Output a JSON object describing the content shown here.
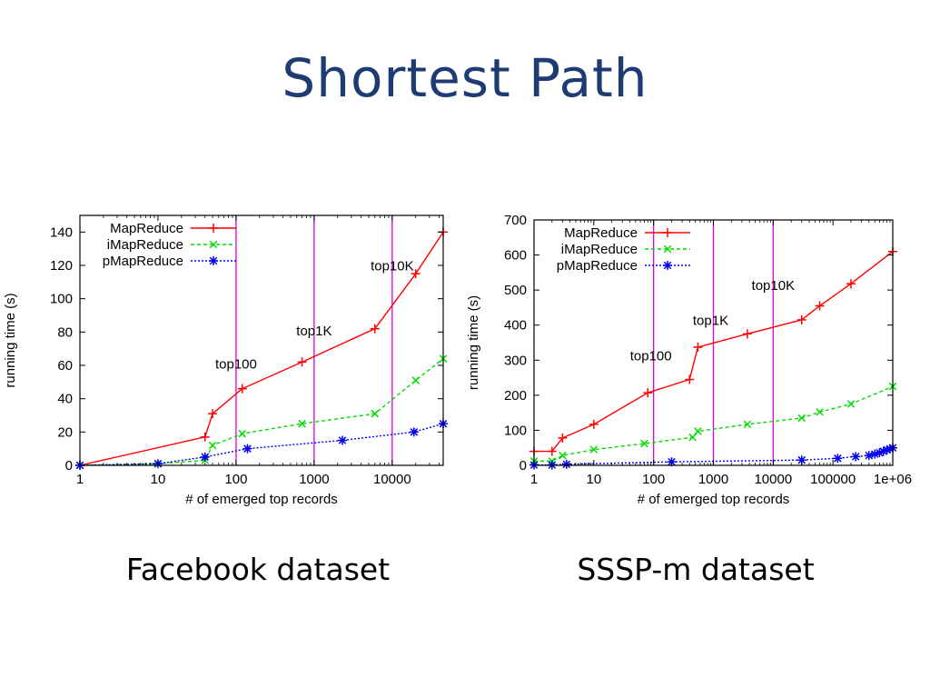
{
  "slide": {
    "title": "Shortest Path",
    "caption_left": "Facebook dataset",
    "caption_right": "SSSP-m dataset"
  },
  "colors": {
    "title": "#1f3b73",
    "MapReduce": "#ff0000",
    "iMapReduce": "#00dd00",
    "pMapReduce": "#0000ee",
    "marker_lines": "#dd00dd"
  },
  "chart_data": [
    {
      "type": "line",
      "xlabel": "# of emerged top records",
      "ylabel": "running time (s)",
      "xscale": "log",
      "xlim": [
        1,
        45000
      ],
      "ylim": [
        0,
        150
      ],
      "xticks": [
        1,
        10,
        100,
        1000,
        10000
      ],
      "xtick_labels": [
        "1",
        "10",
        "100",
        "1000",
        "10000"
      ],
      "yticks": [
        0,
        20,
        40,
        60,
        80,
        100,
        120,
        140
      ],
      "ytick_labels": [
        "0",
        "20",
        "40",
        "60",
        "80",
        "100",
        "120",
        "140"
      ],
      "grid": false,
      "legend": "top-left",
      "vlines": [
        100,
        1000,
        10000
      ],
      "annotations": [
        {
          "text": "top100",
          "x": 100,
          "y": 58
        },
        {
          "text": "top1K",
          "x": 1000,
          "y": 78
        },
        {
          "text": "top10K",
          "x": 10000,
          "y": 117
        }
      ],
      "series": [
        {
          "name": "MapReduce",
          "marker": "plus",
          "line": "solid",
          "x": [
            1,
            40,
            50,
            120,
            700,
            6000,
            20000,
            45000
          ],
          "y": [
            0,
            17,
            31,
            46,
            62,
            82,
            115,
            140
          ]
        },
        {
          "name": "iMapReduce",
          "marker": "cross",
          "line": "dashed",
          "x": [
            1,
            10,
            40,
            50,
            120,
            700,
            6000,
            20000,
            45000
          ],
          "y": [
            0,
            1,
            3,
            12,
            19,
            25,
            31,
            51,
            64
          ]
        },
        {
          "name": "pMapReduce",
          "marker": "star",
          "line": "dotted",
          "x": [
            1,
            10,
            40,
            140,
            2300,
            19000,
            45000
          ],
          "y": [
            0,
            1,
            5,
            10,
            15,
            20,
            25
          ]
        }
      ]
    },
    {
      "type": "line",
      "xlabel": "# of emerged top records",
      "ylabel": "running time (s)",
      "xscale": "log",
      "xlim": [
        1,
        1000000
      ],
      "ylim": [
        0,
        700
      ],
      "xticks": [
        1,
        10,
        100,
        1000,
        10000,
        100000,
        1000000
      ],
      "xtick_labels": [
        "1",
        "10",
        "100",
        "1000",
        "10000",
        "100000",
        "1e+06"
      ],
      "yticks": [
        0,
        100,
        200,
        300,
        400,
        500,
        600,
        700
      ],
      "ytick_labels": [
        "0",
        "100",
        "200",
        "300",
        "400",
        "500",
        "600",
        "700"
      ],
      "grid": false,
      "legend": "top-left",
      "vlines": [
        100,
        1000,
        10000
      ],
      "annotations": [
        {
          "text": "top100",
          "x": 90,
          "y": 300
        },
        {
          "text": "top1K",
          "x": 900,
          "y": 400
        },
        {
          "text": "top10K",
          "x": 10000,
          "y": 500
        }
      ],
      "series": [
        {
          "name": "MapReduce",
          "marker": "plus",
          "line": "solid",
          "x": [
            1,
            2,
            3,
            10,
            80,
            400,
            550,
            3700,
            30000,
            60000,
            200000,
            1000000
          ],
          "y": [
            40,
            40,
            78,
            117,
            207,
            245,
            337,
            375,
            415,
            455,
            518,
            610
          ]
        },
        {
          "name": "iMapReduce",
          "marker": "cross",
          "line": "dashed",
          "x": [
            1,
            2,
            3,
            10,
            70,
            450,
            550,
            3700,
            30000,
            60000,
            200000,
            1000000
          ],
          "y": [
            12,
            12,
            28,
            45,
            62,
            80,
            97,
            117,
            135,
            152,
            175,
            225
          ]
        },
        {
          "name": "pMapReduce",
          "marker": "star",
          "line": "dotted",
          "x": [
            1,
            2,
            3.5,
            200,
            30000,
            120000,
            240000,
            400000,
            500000,
            600000,
            700000,
            800000,
            900000,
            1000000
          ],
          "y": [
            1,
            1,
            3,
            10,
            15,
            20,
            25,
            28,
            32,
            36,
            40,
            44,
            47,
            50
          ]
        }
      ]
    }
  ]
}
